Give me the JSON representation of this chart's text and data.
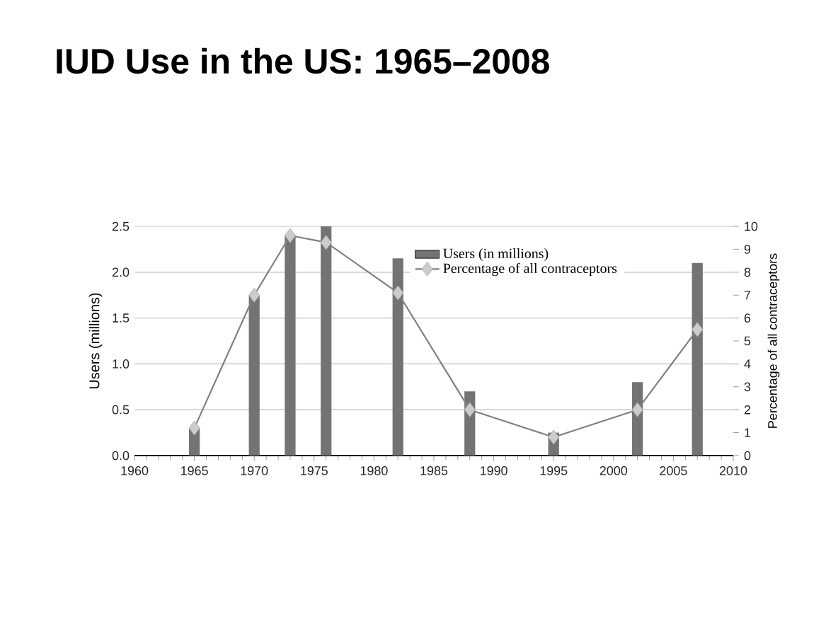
{
  "chart_data": {
    "type": "bar",
    "title": "IUD Use in the US: 1965–2008",
    "x": [
      1965,
      1970,
      1973,
      1976,
      1982,
      1988,
      1995,
      2002,
      2007
    ],
    "series": [
      {
        "name": "Users (in millions)",
        "color": "#737373",
        "values": [
          0.3,
          1.75,
          2.4,
          2.5,
          2.15,
          0.7,
          0.25,
          0.8,
          2.1
        ]
      },
      {
        "name": "Percentage of all contraceptors",
        "type": "line",
        "axis": "y2",
        "color": "#7f7f7f",
        "values": [
          1.2,
          7.0,
          9.6,
          9.3,
          7.1,
          2.0,
          0.8,
          2.0,
          5.5
        ]
      }
    ],
    "ylabel": "Users (millions)",
    "y2label": "Percentage of all contraceptors",
    "xlim": [
      1960,
      2010
    ],
    "xticks": [
      1960,
      1965,
      1970,
      1975,
      1980,
      1985,
      1990,
      1995,
      2000,
      2005,
      2010
    ],
    "ylim": [
      0,
      2.5
    ],
    "yticks": [
      {
        "value": 0,
        "label": "0.0"
      },
      {
        "value": 0.5,
        "label": "0.5"
      },
      {
        "value": 1,
        "label": "1.0"
      },
      {
        "value": 1.5,
        "label": "1.5"
      },
      {
        "value": 2,
        "label": "2.0"
      },
      {
        "value": 2.5,
        "label": "2.5"
      }
    ],
    "y2lim": [
      0,
      10
    ],
    "y2ticks": [
      0,
      1,
      2,
      3,
      4,
      5,
      6,
      7,
      8,
      9,
      10
    ],
    "grid": "y",
    "legend": "top right",
    "marker": "diamond",
    "line_style": "solid"
  }
}
